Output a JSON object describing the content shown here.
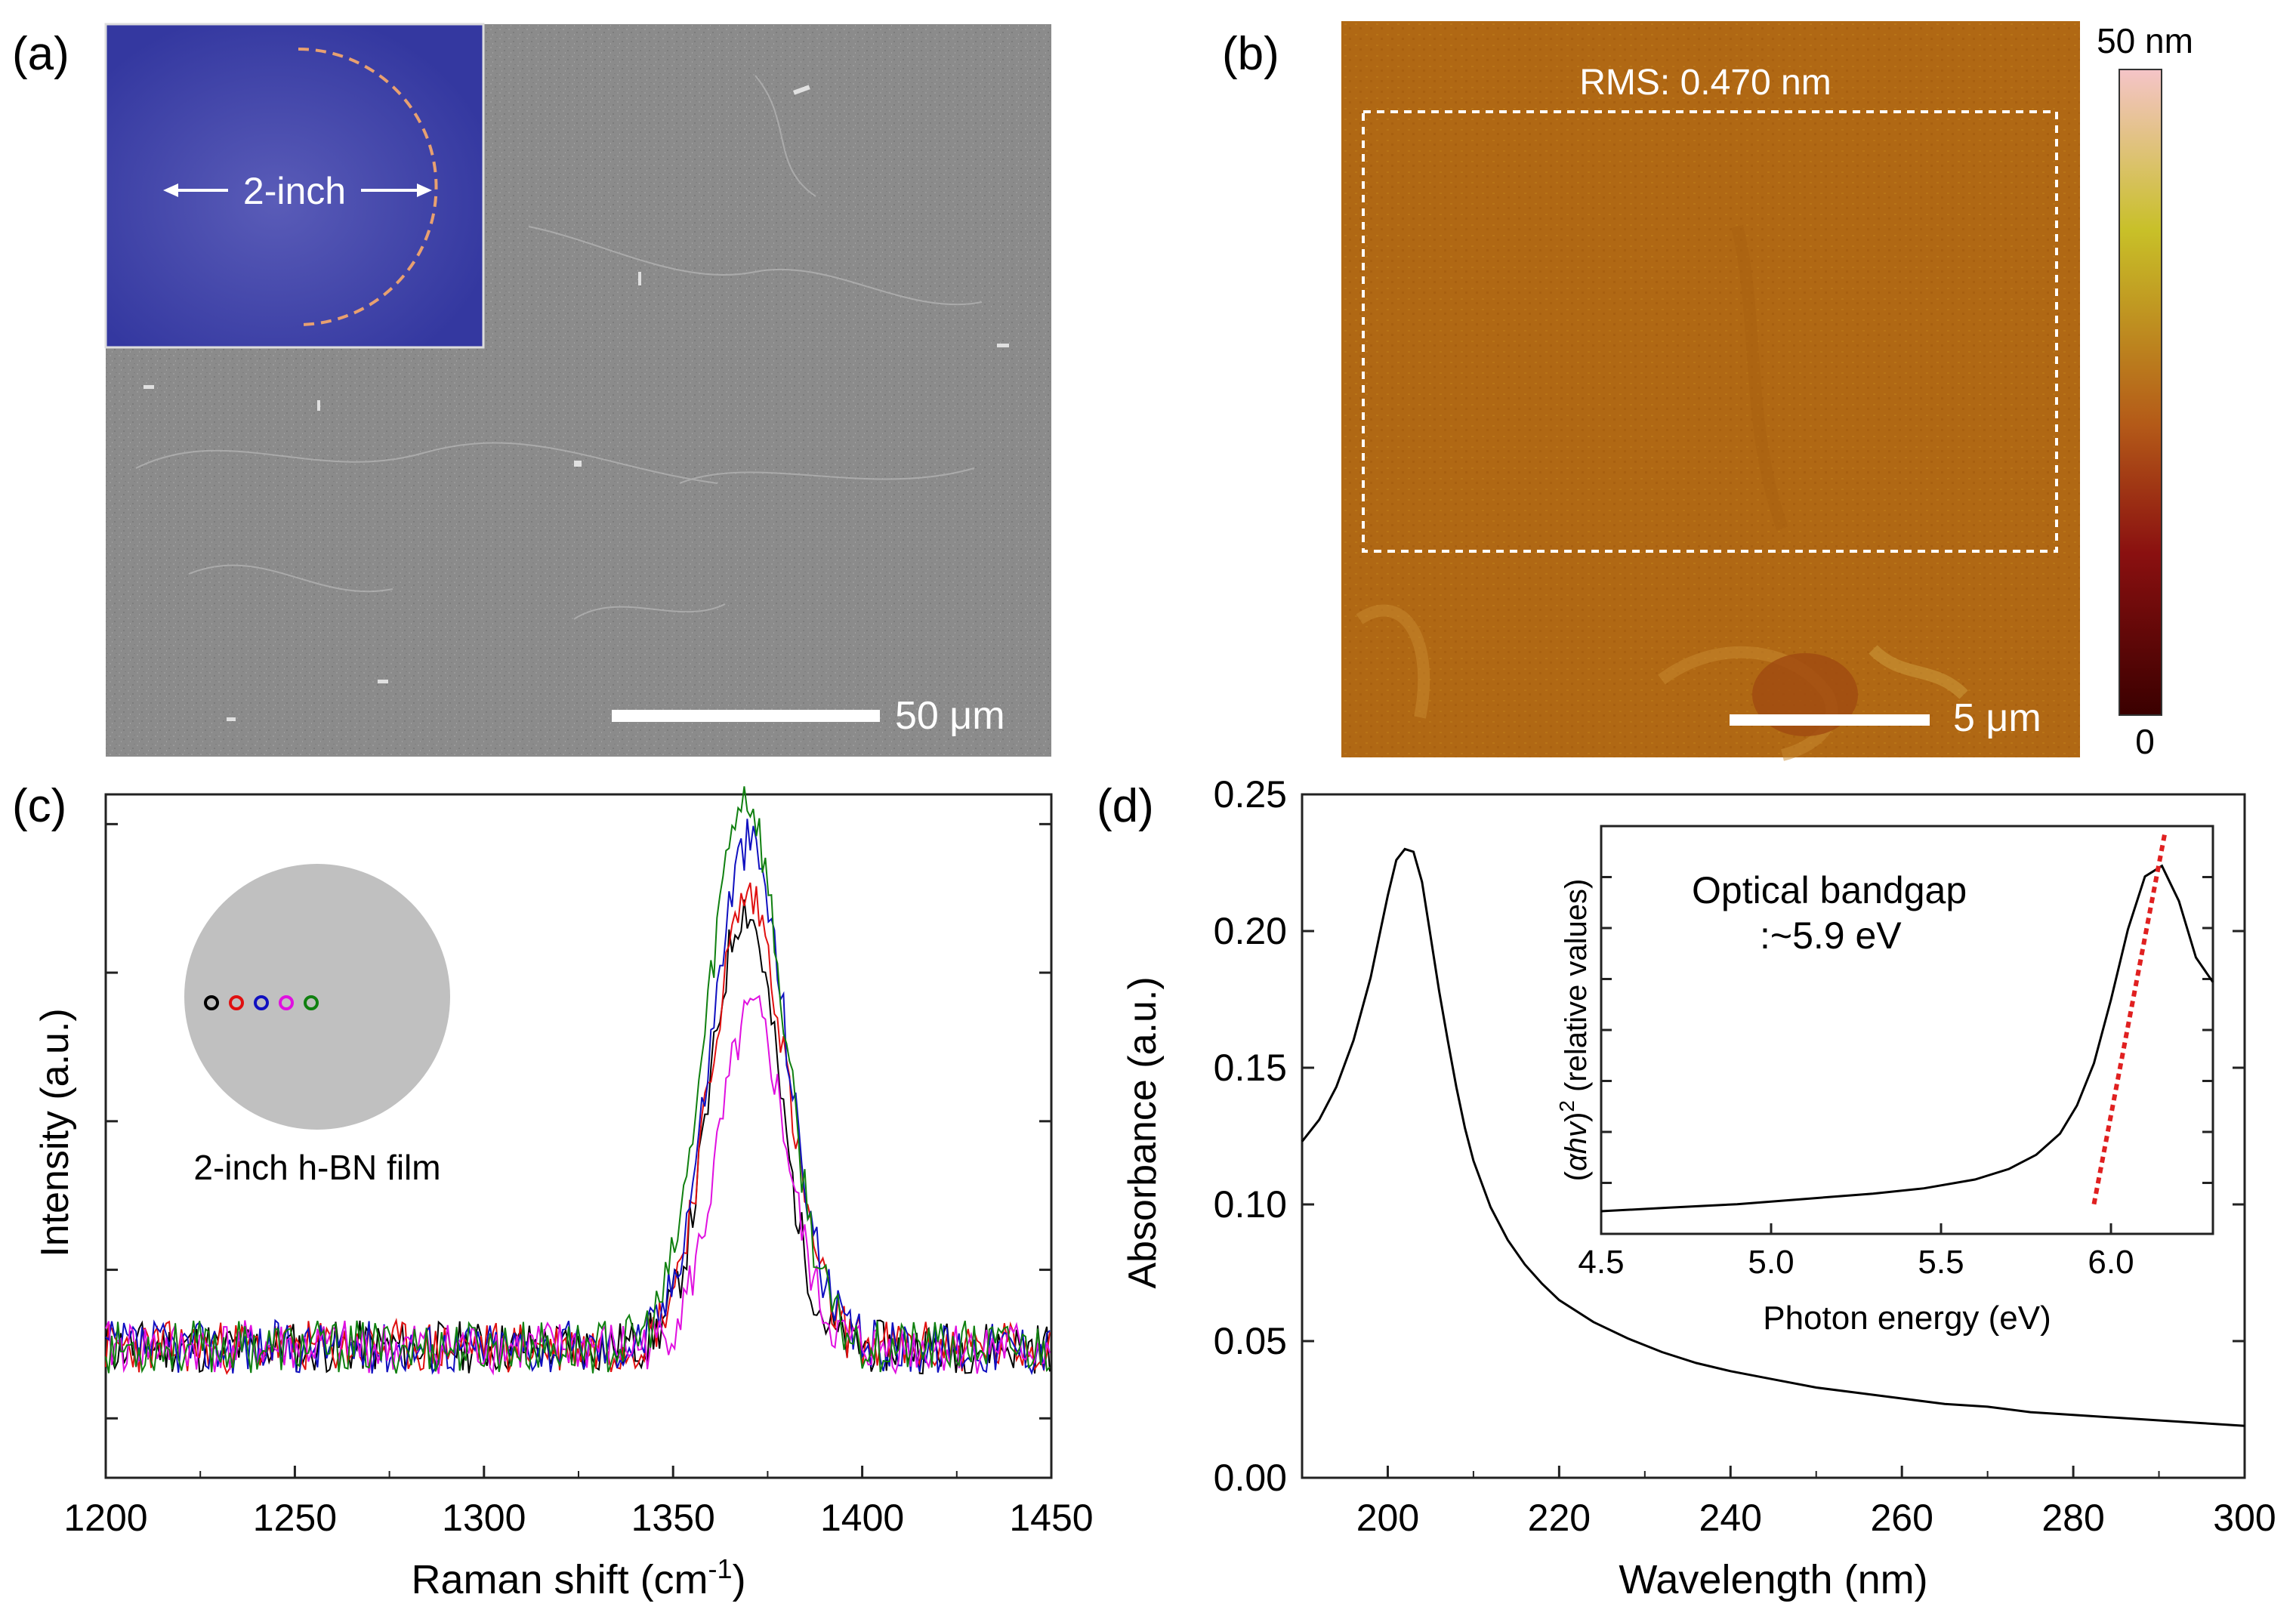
{
  "panels": {
    "a": {
      "label": "(a)",
      "inset_label": "2-inch",
      "scale_bar": "50 μm",
      "colors": {
        "sem_bg": "#8a8a8a",
        "inset_bg": "#3a3ea0",
        "arc": "#e0a070"
      }
    },
    "b": {
      "label": "(b)",
      "rms_text": "RMS: 0.470 nm",
      "scale_bar": "5 μm",
      "colorbar_max": "50 nm",
      "colorbar_min": "0",
      "colors": {
        "afm_bg": "#b06a10",
        "cb_top": "#f4c0c0",
        "cb_mid": "#c8b820",
        "cb_low": "#b06018",
        "cb_bottom": "#400000"
      }
    },
    "c": {
      "label": "(c)",
      "inset_caption": "2-inch h-BN film",
      "marker_colors": [
        "#000000",
        "#e01010",
        "#1010c0",
        "#e010e0",
        "#108010"
      ]
    },
    "d": {
      "label": "(d)",
      "inset_title_line1": "Optical bandgap",
      "inset_title_line2": ":~5.9 eV",
      "fit_color": "#e02020"
    }
  },
  "chart_data": [
    {
      "id": "raman",
      "type": "line",
      "title": "",
      "xlabel": "Raman shift (cm",
      "xlabel_sup": "-1",
      "xlabel_end": ")",
      "ylabel": "Intensity (a.u.)",
      "xlim": [
        1200,
        1450
      ],
      "ylim": [
        0,
        1.15
      ],
      "xticks": [
        "1200",
        "1250",
        "1300",
        "1350",
        "1400",
        "1450"
      ],
      "xtick_values": [
        1200,
        1250,
        1300,
        1350,
        1400,
        1450
      ],
      "series": [
        {
          "name": "black",
          "color": "#000000",
          "peak_pos": 1369,
          "peak_height": 0.74,
          "width": 9,
          "seed": 11
        },
        {
          "name": "red",
          "color": "#e01010",
          "peak_pos": 1370,
          "peak_height": 0.76,
          "width": 10,
          "seed": 23
        },
        {
          "name": "blue",
          "color": "#1010c0",
          "peak_pos": 1370,
          "peak_height": 0.85,
          "width": 10,
          "seed": 37
        },
        {
          "name": "magenta",
          "color": "#e010e0",
          "peak_pos": 1371,
          "peak_height": 0.56,
          "width": 9,
          "seed": 41
        },
        {
          "name": "green",
          "color": "#108010",
          "peak_pos": 1369,
          "peak_height": 0.93,
          "width": 10,
          "seed": 53
        }
      ],
      "baseline": 0.22
    },
    {
      "id": "absorbance",
      "type": "line",
      "title": "",
      "xlabel": "Wavelength (nm)",
      "ylabel": "Absorbance (a.u.)",
      "xlim": [
        190,
        300
      ],
      "ylim": [
        0,
        0.25
      ],
      "xticks": [
        "200",
        "220",
        "240",
        "260",
        "280",
        "300"
      ],
      "xtick_values": [
        200,
        220,
        240,
        260,
        280,
        300
      ],
      "yticks": [
        "0.00",
        "0.05",
        "0.10",
        "0.15",
        "0.20",
        "0.25"
      ],
      "ytick_values": [
        0.0,
        0.05,
        0.1,
        0.15,
        0.2,
        0.25
      ],
      "x": [
        190,
        192,
        194,
        196,
        198,
        199,
        200,
        201,
        202,
        203,
        204,
        205,
        206,
        207,
        208,
        209,
        210,
        212,
        214,
        216,
        218,
        220,
        224,
        228,
        232,
        236,
        240,
        245,
        250,
        255,
        260,
        265,
        270,
        275,
        280,
        285,
        290,
        295,
        300
      ],
      "y": [
        0.123,
        0.131,
        0.143,
        0.16,
        0.183,
        0.198,
        0.213,
        0.226,
        0.23,
        0.229,
        0.218,
        0.198,
        0.178,
        0.16,
        0.143,
        0.128,
        0.116,
        0.099,
        0.087,
        0.078,
        0.071,
        0.065,
        0.057,
        0.051,
        0.046,
        0.042,
        0.039,
        0.036,
        0.033,
        0.031,
        0.029,
        0.027,
        0.026,
        0.024,
        0.023,
        0.022,
        0.021,
        0.02,
        0.019
      ]
    },
    {
      "id": "tauc_inset",
      "type": "line",
      "title": "",
      "xlabel": "Photon energy (eV)",
      "ylabel_prefix": "(",
      "ylabel_alpha": "αhv",
      "ylabel_mid": ")",
      "ylabel_sup": "2",
      "ylabel_suffix": " (relative  values)",
      "xlim": [
        4.5,
        6.3
      ],
      "ylim": [
        0,
        1.05
      ],
      "xticks": [
        "4.5",
        "5.0",
        "5.5",
        "6.0"
      ],
      "xtick_values": [
        4.5,
        5.0,
        5.5,
        6.0
      ],
      "x": [
        4.5,
        4.7,
        4.9,
        5.1,
        5.3,
        5.45,
        5.6,
        5.7,
        5.78,
        5.85,
        5.9,
        5.95,
        6.0,
        6.05,
        6.1,
        6.15,
        6.2,
        6.25,
        6.3
      ],
      "y": [
        0.0,
        0.01,
        0.02,
        0.035,
        0.05,
        0.065,
        0.09,
        0.12,
        0.16,
        0.22,
        0.3,
        0.42,
        0.6,
        0.8,
        0.95,
        0.98,
        0.88,
        0.72,
        0.65
      ],
      "fit_line": {
        "x": [
          5.95,
          6.16
        ],
        "y": [
          0.02,
          1.08
        ]
      }
    }
  ]
}
